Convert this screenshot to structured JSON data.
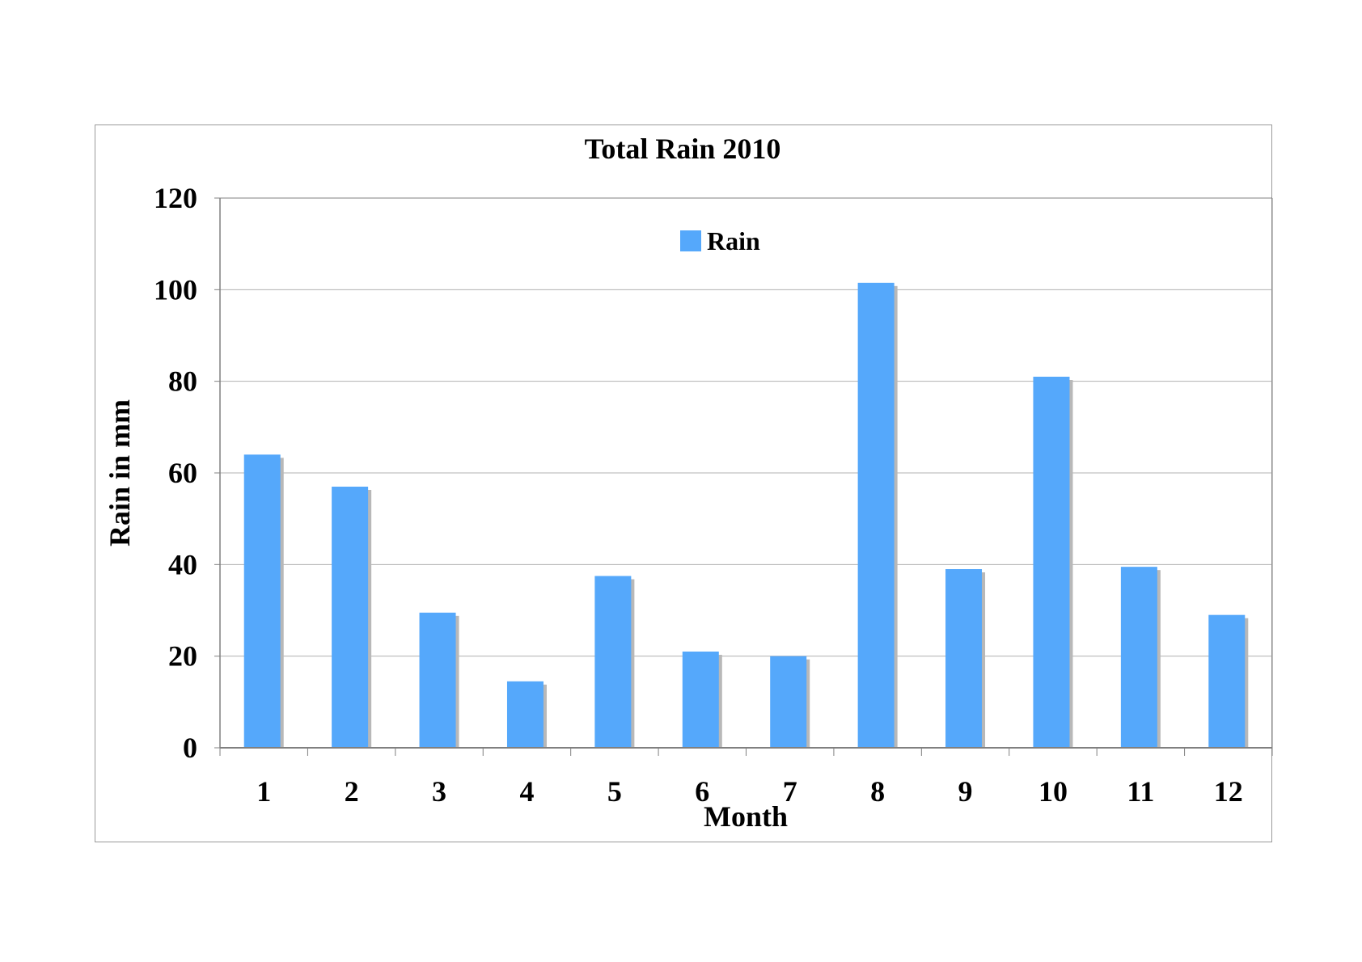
{
  "chart_data": {
    "type": "bar",
    "title": "Total Rain 2010",
    "xlabel": "Month",
    "ylabel": "Rain in mm",
    "categories": [
      "1",
      "2",
      "3",
      "4",
      "5",
      "6",
      "7",
      "8",
      "9",
      "10",
      "11",
      "12"
    ],
    "series": [
      {
        "name": "Rain",
        "values": [
          64,
          57,
          29.5,
          14.5,
          37.5,
          21,
          20,
          101.5,
          39,
          81,
          39.5,
          29
        ]
      }
    ],
    "ylim": [
      0,
      120
    ],
    "yticks": [
      0,
      20,
      40,
      60,
      80,
      100,
      120
    ],
    "grid": true,
    "legend": "top-center",
    "colors": {
      "bar": "#55a8fb",
      "shadow": "#b8b8b8",
      "grid": "#b0b0b0",
      "axis": "#808080"
    }
  }
}
